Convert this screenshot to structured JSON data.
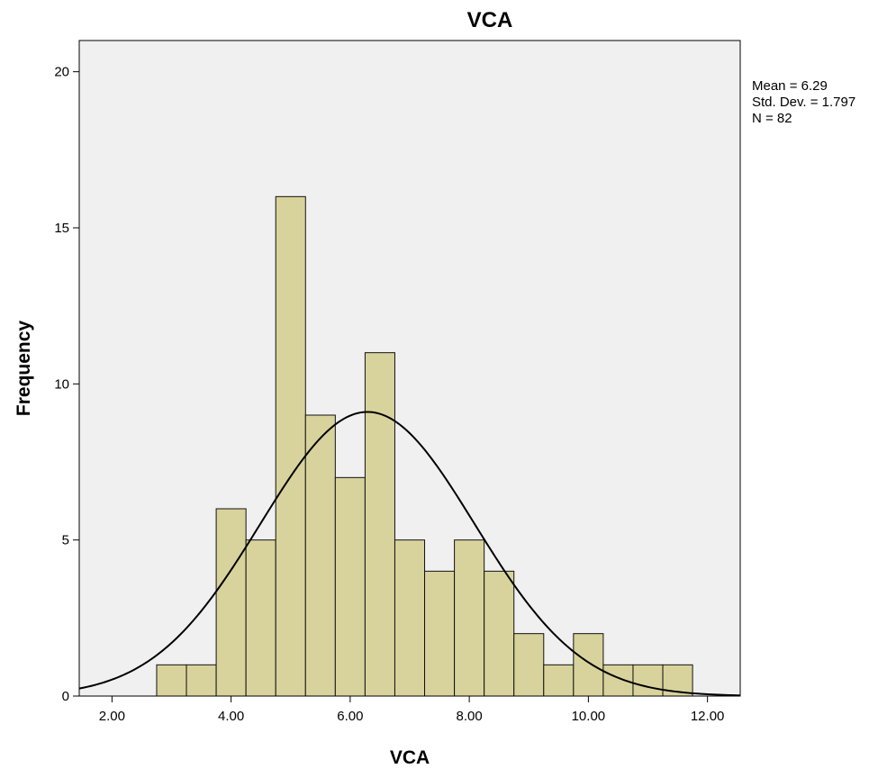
{
  "chart_data": {
    "type": "bar",
    "title": "VCA",
    "xlabel": "VCA",
    "ylabel": "Frequency",
    "xlim": [
      1.45,
      12.55
    ],
    "ylim": [
      0,
      21
    ],
    "x_ticks": [
      "2.00",
      "4.00",
      "6.00",
      "8.00",
      "10.00",
      "12.00"
    ],
    "x_tick_values": [
      2,
      4,
      6,
      8,
      10,
      12
    ],
    "y_ticks": [
      "0",
      "5",
      "10",
      "15",
      "20"
    ],
    "y_tick_values": [
      0,
      5,
      10,
      15,
      20
    ],
    "bins": [
      {
        "start": 2.75,
        "end": 3.25,
        "count": 1
      },
      {
        "start": 3.25,
        "end": 3.75,
        "count": 1
      },
      {
        "start": 3.75,
        "end": 4.25,
        "count": 6
      },
      {
        "start": 4.25,
        "end": 4.75,
        "count": 5
      },
      {
        "start": 4.75,
        "end": 5.25,
        "count": 16
      },
      {
        "start": 5.25,
        "end": 5.75,
        "count": 9
      },
      {
        "start": 5.75,
        "end": 6.25,
        "count": 7
      },
      {
        "start": 6.25,
        "end": 6.75,
        "count": 11
      },
      {
        "start": 6.75,
        "end": 7.25,
        "count": 5
      },
      {
        "start": 7.25,
        "end": 7.75,
        "count": 4
      },
      {
        "start": 7.75,
        "end": 8.25,
        "count": 5
      },
      {
        "start": 8.25,
        "end": 8.75,
        "count": 4
      },
      {
        "start": 8.75,
        "end": 9.25,
        "count": 2
      },
      {
        "start": 9.25,
        "end": 9.75,
        "count": 1
      },
      {
        "start": 9.75,
        "end": 10.25,
        "count": 2
      },
      {
        "start": 10.25,
        "end": 10.75,
        "count": 1
      },
      {
        "start": 10.75,
        "end": 11.25,
        "count": 1
      },
      {
        "start": 11.25,
        "end": 11.75,
        "count": 1
      }
    ],
    "normal_curve": {
      "mean": 6.29,
      "sd": 1.797,
      "n": 82,
      "bin_width": 0.5
    },
    "stats": {
      "mean_label": "Mean = 6.29",
      "sd_label": "Std. Dev. = 1.797",
      "n_label": "N = 82"
    },
    "colors": {
      "bar_fill": "#d8d39c",
      "plot_bg": "#f0f0f0",
      "curve": "#000000"
    },
    "grid": false,
    "legend": "right"
  }
}
